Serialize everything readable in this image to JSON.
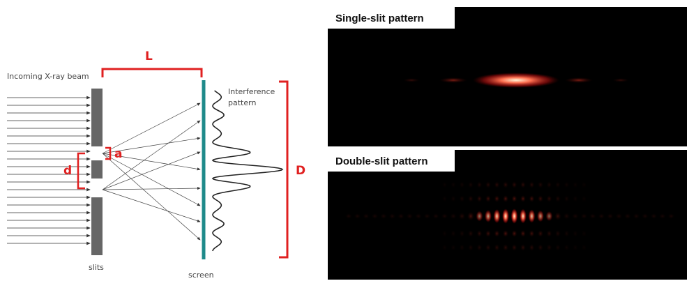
{
  "diagram": {
    "beam_label": "Incoming X-ray beam",
    "slits_label": "slits",
    "screen_label": "screen",
    "pattern_label": [
      "Interference",
      "pattern"
    ],
    "L_label": "L",
    "D_label": "D",
    "a_label": "a",
    "d_label": "d"
  },
  "panels": [
    {
      "title": "Single-slit pattern"
    },
    {
      "title": "Double-slit pattern"
    }
  ]
}
